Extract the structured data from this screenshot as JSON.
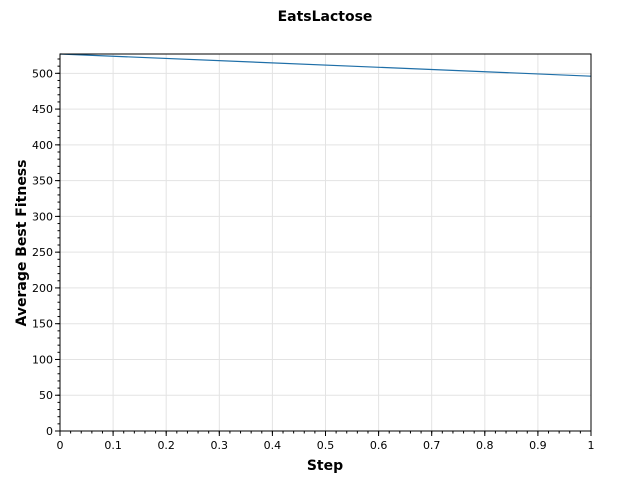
{
  "chart_data": {
    "type": "line",
    "title": "EatsLactose",
    "xlabel": "Step",
    "ylabel": "Average Best Fitness",
    "xlim": [
      0,
      1
    ],
    "ylim": [
      0,
      527
    ],
    "xticks": [
      0,
      0.1,
      0.2,
      0.3,
      0.4,
      0.5,
      0.6,
      0.7,
      0.8,
      0.9,
      1
    ],
    "xtick_labels": [
      "0",
      "0.1",
      "0.2",
      "0.3",
      "0.4",
      "0.5",
      "0.6",
      "0.7",
      "0.8",
      "0.9",
      "1"
    ],
    "yticks": [
      0,
      50,
      100,
      150,
      200,
      250,
      300,
      350,
      400,
      450,
      500
    ],
    "ytick_labels": [
      "0",
      "50",
      "100",
      "150",
      "200",
      "250",
      "300",
      "350",
      "400",
      "450",
      "500"
    ],
    "grid": true,
    "series": [
      {
        "name": "EatsLactose",
        "color": "#1f6fa8",
        "x": [
          0,
          1
        ],
        "y": [
          527,
          496
        ]
      }
    ]
  }
}
